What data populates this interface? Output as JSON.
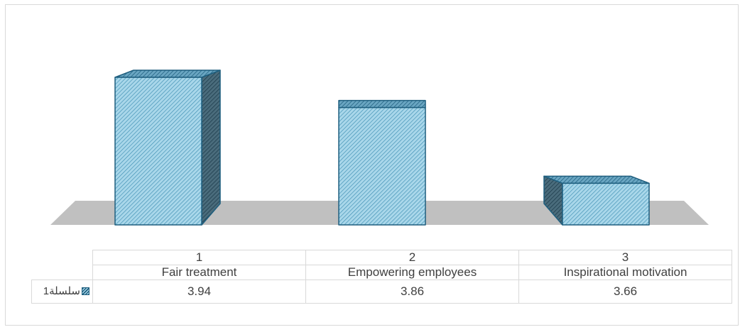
{
  "chart_data": {
    "type": "bar",
    "style": "3d-column",
    "categories": [
      "1",
      "2",
      "3"
    ],
    "category_names": [
      "Fair treatment",
      "Empowering employees",
      "Inspirational motivation"
    ],
    "series": [
      {
        "name": "سلسلة1",
        "values": [
          3.94,
          3.86,
          3.66
        ]
      }
    ],
    "value_labels": [
      "3.94",
      "3.86",
      "3.66"
    ],
    "ylim": [
      3.55,
      4.0
    ],
    "grid": false,
    "data_table": true,
    "colors": {
      "fill": "#a9d7ea",
      "stripe": "#1f5f7f",
      "floor": "#c0c0c0"
    }
  }
}
